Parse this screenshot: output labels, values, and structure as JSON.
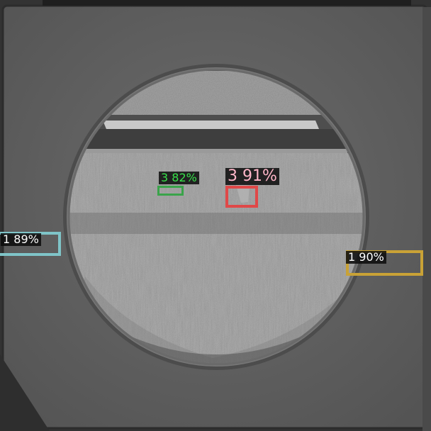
{
  "detections": [
    {
      "label": "3 82%",
      "color": "#3aa44a",
      "text_color": "#37e24a"
    },
    {
      "label": "3 91%",
      "color": "#e04848",
      "text_color": "#ffb6c8"
    },
    {
      "label": "1 89%",
      "color": "#7fc4c8",
      "text_color": "#ffffff"
    },
    {
      "label": "1 90%",
      "color": "#c9a236",
      "text_color": "#ffffff"
    }
  ]
}
